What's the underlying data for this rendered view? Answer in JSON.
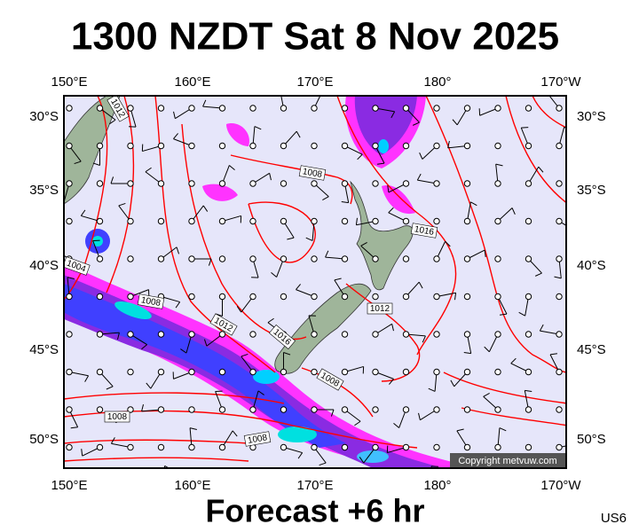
{
  "header": {
    "title": "1300 NZDT Sat 8 Nov 2025"
  },
  "lon_labels": [
    "150°E",
    "160°E",
    "170°E",
    "180°",
    "170°W"
  ],
  "lat_labels": [
    "30°S",
    "35°S",
    "40°S",
    "45°S",
    "50°S"
  ],
  "isobar_labels": [
    "1012",
    "1008",
    "1016",
    "1004",
    "1008",
    "1012",
    "1016",
    "1012",
    "1008",
    "1008",
    "1008"
  ],
  "copyright": "Copyright metvuw.com",
  "footer": {
    "forecast": "Forecast +6 hr",
    "code": "US6"
  }
}
